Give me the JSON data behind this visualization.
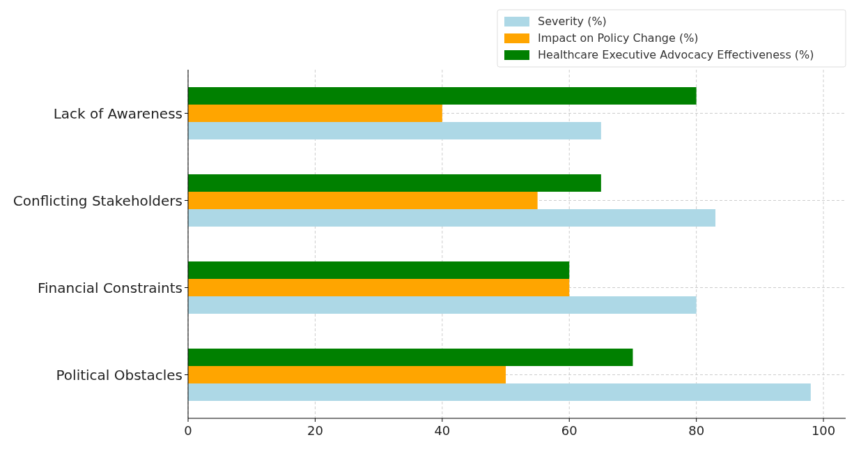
{
  "chart_data": {
    "type": "bar",
    "orientation": "horizontal",
    "categories": [
      "Lack of Awareness",
      "Conflicting Stakeholders",
      "Financial Constraints",
      "Political Obstacles"
    ],
    "series": [
      {
        "name": "Severity (%)",
        "color": "#add8e6",
        "values": [
          65,
          83,
          80,
          98
        ]
      },
      {
        "name": "Impact on Policy Change (%)",
        "color": "#ffa500",
        "values": [
          40,
          55,
          60,
          50
        ]
      },
      {
        "name": "Healthcare Executive Advocacy Effectiveness (%)",
        "color": "#008000",
        "values": [
          80,
          65,
          60,
          70
        ]
      }
    ],
    "xlim": [
      0,
      103.5
    ],
    "xticks": [
      0,
      20,
      40,
      60,
      80,
      100
    ],
    "grid": true,
    "legend": "top right"
  }
}
